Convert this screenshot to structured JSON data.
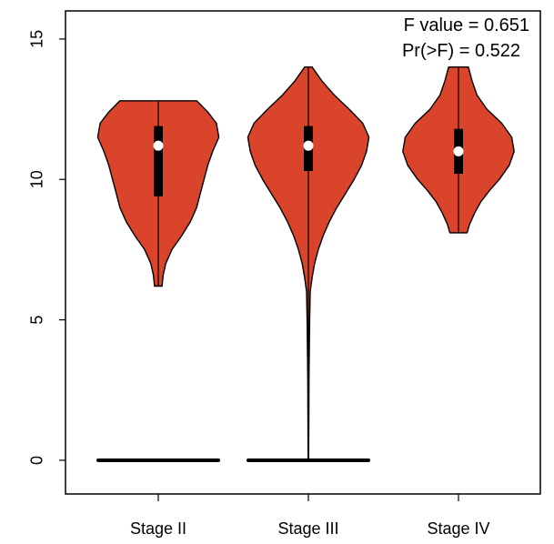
{
  "chart_data": {
    "type": "violin",
    "title": "",
    "xlabel": "",
    "ylabel": "",
    "ylim": [
      -1.2,
      16
    ],
    "yticks": [
      0,
      5,
      10,
      15
    ],
    "categories": [
      "Stage II",
      "Stage III",
      "Stage IV"
    ],
    "fill_color": "#d9442b",
    "annotations": [
      "F value = 0.651",
      "Pr(>F) = 0.522"
    ],
    "violins": [
      {
        "name": "Stage II",
        "min": 6.2,
        "q1": 9.4,
        "median": 11.2,
        "q3": 11.9,
        "max": 12.8,
        "outlier_bar_y": 0,
        "density": [
          [
            6.2,
            0.06
          ],
          [
            6.6,
            0.08
          ],
          [
            7.0,
            0.12
          ],
          [
            7.5,
            0.22
          ],
          [
            8.0,
            0.38
          ],
          [
            8.5,
            0.52
          ],
          [
            9.0,
            0.62
          ],
          [
            9.5,
            0.68
          ],
          [
            10.0,
            0.74
          ],
          [
            10.5,
            0.8
          ],
          [
            11.0,
            0.88
          ],
          [
            11.5,
            0.98
          ],
          [
            12.0,
            0.94
          ],
          [
            12.4,
            0.8
          ],
          [
            12.8,
            0.62
          ]
        ]
      },
      {
        "name": "Stage III",
        "min": 0,
        "q1": 10.3,
        "median": 11.2,
        "q3": 11.9,
        "max": 14.0,
        "outlier_bar_y": 0,
        "density": [
          [
            0,
            0.005
          ],
          [
            3,
            0.01
          ],
          [
            5,
            0.02
          ],
          [
            6,
            0.03
          ],
          [
            6.5,
            0.06
          ],
          [
            7,
            0.1
          ],
          [
            7.5,
            0.16
          ],
          [
            8,
            0.24
          ],
          [
            8.5,
            0.34
          ],
          [
            9,
            0.46
          ],
          [
            9.5,
            0.6
          ],
          [
            10,
            0.74
          ],
          [
            10.5,
            0.86
          ],
          [
            11,
            0.94
          ],
          [
            11.5,
            0.98
          ],
          [
            12,
            0.88
          ],
          [
            12.5,
            0.66
          ],
          [
            13,
            0.42
          ],
          [
            13.5,
            0.22
          ],
          [
            14,
            0.06
          ]
        ]
      },
      {
        "name": "Stage IV",
        "min": 8.1,
        "q1": 10.2,
        "median": 11.0,
        "q3": 11.8,
        "max": 14.0,
        "density": [
          [
            8.1,
            0.14
          ],
          [
            8.4,
            0.18
          ],
          [
            8.8,
            0.26
          ],
          [
            9.2,
            0.36
          ],
          [
            9.6,
            0.5
          ],
          [
            10,
            0.66
          ],
          [
            10.5,
            0.82
          ],
          [
            11,
            0.9
          ],
          [
            11.5,
            0.86
          ],
          [
            12,
            0.7
          ],
          [
            12.5,
            0.46
          ],
          [
            13,
            0.3
          ],
          [
            13.5,
            0.22
          ],
          [
            14,
            0.16
          ]
        ]
      }
    ]
  }
}
